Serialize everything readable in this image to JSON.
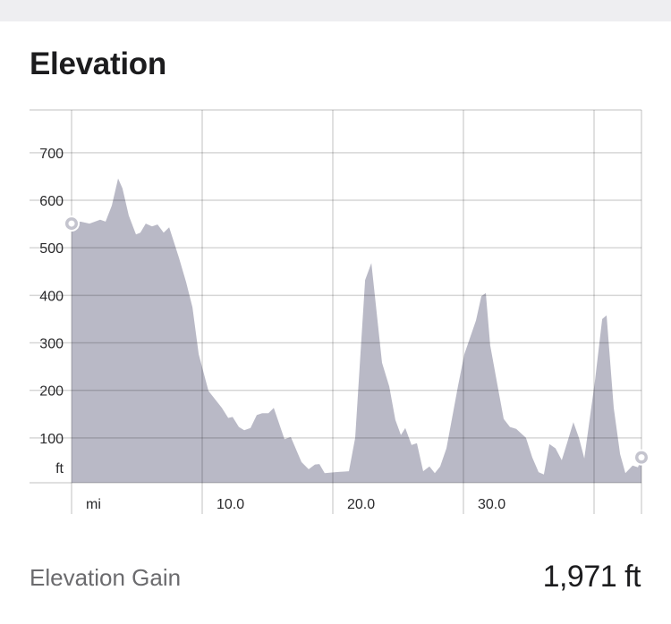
{
  "header": {
    "title": "Elevation"
  },
  "summary": {
    "label": "Elevation Gain",
    "value": "1,971 ft"
  },
  "colors": {
    "fill": "#b9b9c6",
    "grid": "#d6d6da",
    "marker": "#c4c4ce"
  },
  "chart_data": {
    "type": "area",
    "title": "Elevation",
    "xlabel": "mi",
    "ylabel": "ft",
    "xlim": [
      0,
      43.63
    ],
    "ylim": [
      0,
      790
    ],
    "x_ticks": [
      {
        "value": 0,
        "label": "mi"
      },
      {
        "value": 10,
        "label": "10.0"
      },
      {
        "value": 20,
        "label": "20.0"
      },
      {
        "value": 30,
        "label": "30.0"
      },
      {
        "value": 40,
        "label": ""
      },
      {
        "value": 43.63,
        "label": ""
      }
    ],
    "y_ticks": [
      {
        "value": 100,
        "label": "100"
      },
      {
        "value": 200,
        "label": "200"
      },
      {
        "value": 300,
        "label": "300"
      },
      {
        "value": 400,
        "label": "400"
      },
      {
        "value": 500,
        "label": "500"
      },
      {
        "value": 600,
        "label": "600"
      },
      {
        "value": 700,
        "label": "700"
      }
    ],
    "y_unit_label": "ft",
    "grid": true,
    "series": [
      {
        "name": "Elevation",
        "x": [
          0,
          0.68,
          1.37,
          2.19,
          2.6,
          3.08,
          3.56,
          3.9,
          4.38,
          4.93,
          5.27,
          5.68,
          6.16,
          6.58,
          7.05,
          7.47,
          8.22,
          8.77,
          9.25,
          9.73,
          10.48,
          11.51,
          11.99,
          12.33,
          12.81,
          13.22,
          13.7,
          14.18,
          14.59,
          15.07,
          15.48,
          16.3,
          16.78,
          17.6,
          18.15,
          18.63,
          18.97,
          19.38,
          20.21,
          21.23,
          21.71,
          22.47,
          22.95,
          23.77,
          24.32,
          24.79,
          25.21,
          25.55,
          26.03,
          26.44,
          26.92,
          27.4,
          27.81,
          28.22,
          28.7,
          29.59,
          30.07,
          30.96,
          31.37,
          31.71,
          32.05,
          32.67,
          33.08,
          33.56,
          34.04,
          34.79,
          35.27,
          35.75,
          36.16,
          36.58,
          37.05,
          37.53,
          37.95,
          38.42,
          38.84,
          39.25,
          40.07,
          40.62,
          40.96,
          41.51,
          41.99,
          42.4,
          42.95,
          43.36,
          43.63
        ],
        "y": [
          551,
          555,
          551,
          559,
          555,
          589,
          646,
          625,
          568,
          528,
          532,
          551,
          545,
          549,
          532,
          543,
          479,
          428,
          375,
          276,
          199,
          163,
          142,
          144,
          123,
          116,
          121,
          148,
          152,
          152,
          163,
          97,
          102,
          49,
          34,
          44,
          45,
          26,
          28,
          30,
          100,
          432,
          468,
          258,
          208,
          138,
          106,
          121,
          85,
          89,
          30,
          40,
          26,
          40,
          78,
          210,
          276,
          347,
          398,
          405,
          295,
          201,
          140,
          123,
          119,
          100,
          59,
          28,
          23,
          87,
          78,
          53,
          91,
          133,
          100,
          57,
          220,
          350,
          358,
          163,
          66,
          26,
          42,
          38,
          59
        ]
      }
    ],
    "markers": [
      {
        "name": "start",
        "x": 0,
        "y": 551
      },
      {
        "name": "end",
        "x": 43.63,
        "y": 59
      }
    ]
  }
}
